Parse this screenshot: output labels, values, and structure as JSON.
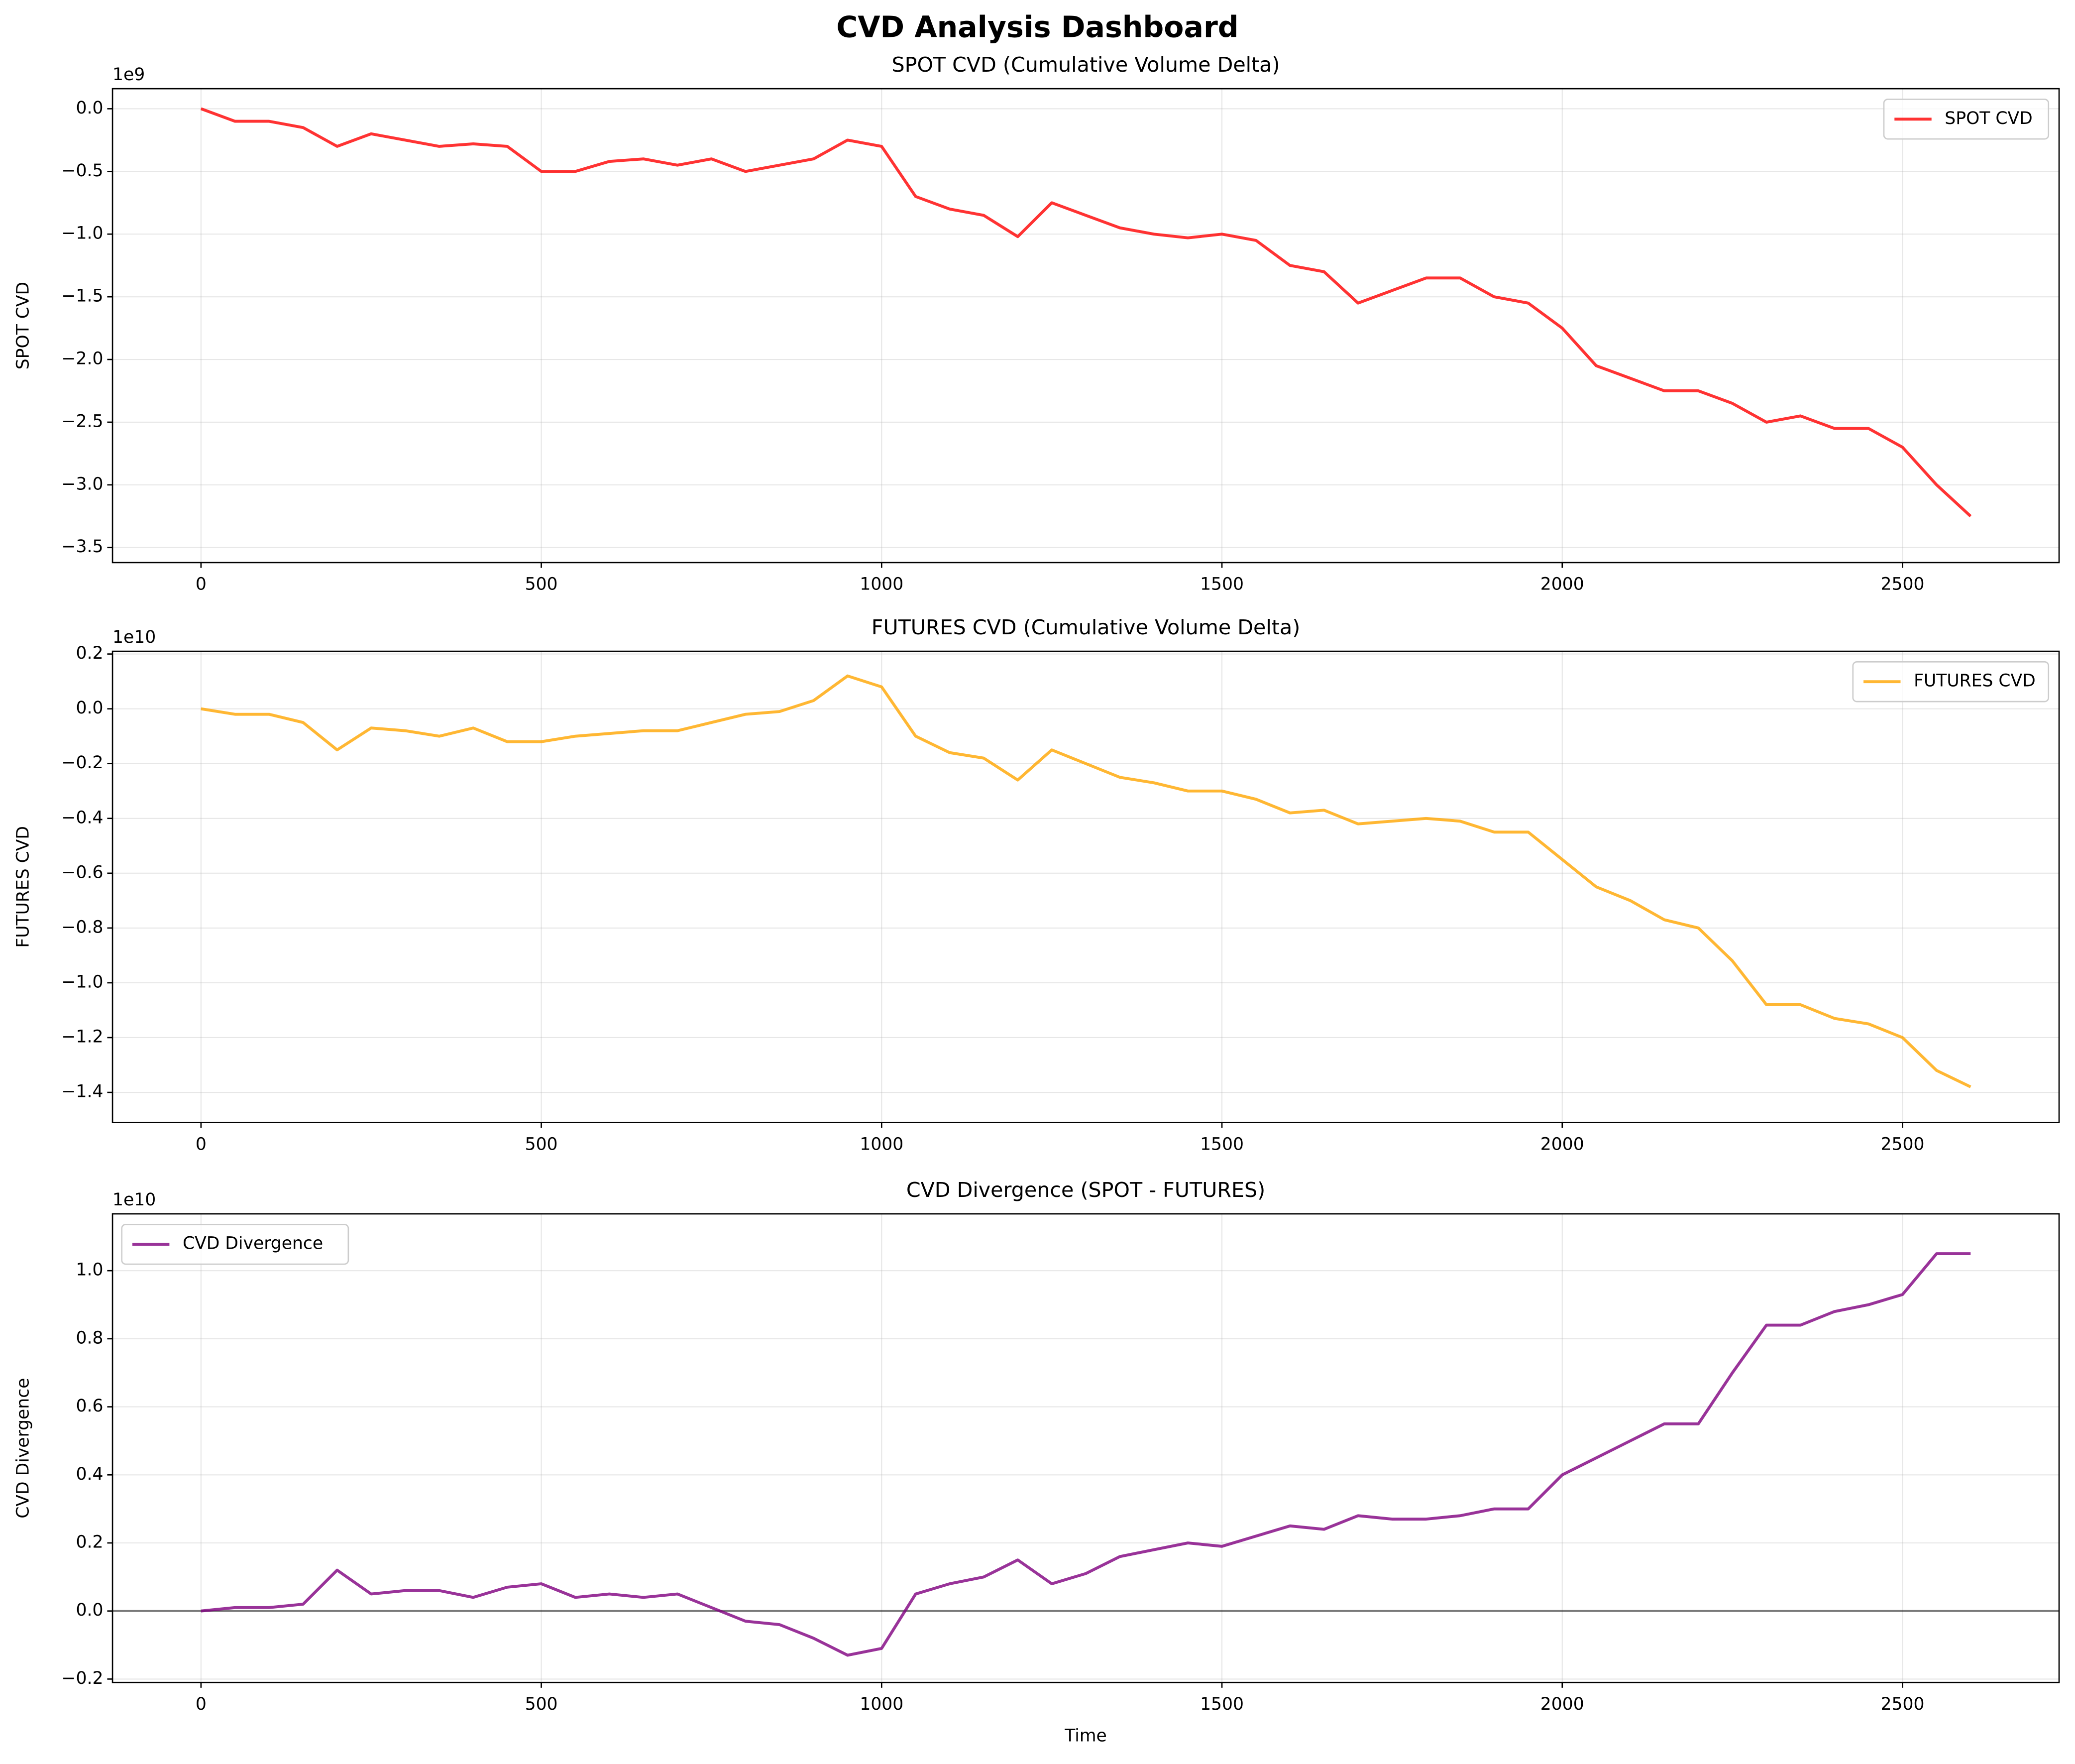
{
  "title": "CVD Analysis Dashboard",
  "chart_data": [
    {
      "type": "line",
      "title": "SPOT CVD (Cumulative Volume Delta)",
      "ylabel": "SPOT CVD",
      "offset_label": "1e9",
      "x": [
        0,
        50,
        100,
        150,
        200,
        250,
        300,
        350,
        400,
        450,
        500,
        550,
        600,
        650,
        700,
        750,
        800,
        850,
        900,
        950,
        1000,
        1050,
        1100,
        1150,
        1200,
        1250,
        1300,
        1350,
        1400,
        1450,
        1500,
        1550,
        1600,
        1650,
        1700,
        1750,
        1800,
        1850,
        1900,
        1950,
        2000,
        2050,
        2100,
        2150,
        2200,
        2250,
        2300,
        2350,
        2400,
        2450,
        2500,
        2550,
        2600
      ],
      "series": [
        {
          "name": "SPOT CVD",
          "color": "red",
          "values": [
            0,
            -0.1,
            -0.1,
            -0.15,
            -0.3,
            -0.2,
            -0.25,
            -0.3,
            -0.28,
            -0.3,
            -0.5,
            -0.5,
            -0.42,
            -0.4,
            -0.45,
            -0.4,
            -0.5,
            -0.45,
            -0.4,
            -0.25,
            -0.3,
            -0.7,
            -0.8,
            -0.85,
            -1.02,
            -0.75,
            -0.85,
            -0.95,
            -1.0,
            -1.03,
            -1.0,
            -1.05,
            -1.25,
            -1.3,
            -1.55,
            -1.45,
            -1.35,
            -1.35,
            -1.5,
            -1.55,
            -1.75,
            -2.05,
            -2.15,
            -2.25,
            -2.25,
            -2.35,
            -2.5,
            -2.45,
            -2.55,
            -2.55,
            -2.7,
            -3.0,
            -3.25
          ]
        }
      ],
      "xlim": [
        -130,
        2730
      ],
      "xticks": [
        0,
        500,
        1000,
        1500,
        2000,
        2500
      ],
      "ylim": [
        -3.62,
        0.16
      ],
      "yticks": [
        {
          "value": 0,
          "label": "0.0"
        },
        {
          "value": -0.5,
          "label": "−0.5"
        },
        {
          "value": -1,
          "label": "−1.0"
        },
        {
          "value": -1.5,
          "label": "−1.5"
        },
        {
          "value": -2,
          "label": "−2.0"
        },
        {
          "value": -2.5,
          "label": "−2.5"
        },
        {
          "value": -3,
          "label": "−3.0"
        },
        {
          "value": -3.5,
          "label": "−3.5"
        }
      ],
      "grid": true,
      "legend": "upper right"
    },
    {
      "type": "line",
      "title": "FUTURES CVD (Cumulative Volume Delta)",
      "ylabel": "FUTURES CVD",
      "offset_label": "1e10",
      "x": [
        0,
        50,
        100,
        150,
        200,
        250,
        300,
        350,
        400,
        450,
        500,
        550,
        600,
        650,
        700,
        750,
        800,
        850,
        900,
        950,
        1000,
        1050,
        1100,
        1150,
        1200,
        1250,
        1300,
        1350,
        1400,
        1450,
        1500,
        1550,
        1600,
        1650,
        1700,
        1750,
        1800,
        1850,
        1900,
        1950,
        2000,
        2050,
        2100,
        2150,
        2200,
        2250,
        2300,
        2350,
        2400,
        2450,
        2500,
        2550,
        2600
      ],
      "series": [
        {
          "name": "FUTURES CVD",
          "color": "orange",
          "values": [
            0,
            -0.02,
            -0.02,
            -0.05,
            -0.15,
            -0.07,
            -0.08,
            -0.1,
            -0.07,
            -0.12,
            -0.12,
            -0.1,
            -0.09,
            -0.08,
            -0.08,
            -0.05,
            -0.02,
            -0.01,
            0.03,
            0.12,
            0.08,
            -0.1,
            -0.16,
            -0.18,
            -0.26,
            -0.15,
            -0.2,
            -0.25,
            -0.27,
            -0.3,
            -0.3,
            -0.33,
            -0.38,
            -0.37,
            -0.42,
            -0.41,
            -0.4,
            -0.41,
            -0.45,
            -0.45,
            -0.55,
            -0.65,
            -0.7,
            -0.77,
            -0.8,
            -0.92,
            -1.08,
            -1.08,
            -1.13,
            -1.15,
            -1.2,
            -1.32,
            -1.38
          ]
        }
      ],
      "xlim": [
        -130,
        2730
      ],
      "xticks": [
        0,
        500,
        1000,
        1500,
        2000,
        2500
      ],
      "ylim": [
        -1.51,
        0.21
      ],
      "yticks": [
        {
          "value": 0.2,
          "label": "0.2"
        },
        {
          "value": 0,
          "label": "0.0"
        },
        {
          "value": -0.2,
          "label": "−0.2"
        },
        {
          "value": -0.4,
          "label": "−0.4"
        },
        {
          "value": -0.6,
          "label": "−0.6"
        },
        {
          "value": -0.8,
          "label": "−0.8"
        },
        {
          "value": -1,
          "label": "−1.0"
        },
        {
          "value": -1.2,
          "label": "−1.2"
        },
        {
          "value": -1.4,
          "label": "−1.4"
        }
      ],
      "grid": true,
      "legend": "upper right"
    },
    {
      "type": "line",
      "title": "CVD Divergence (SPOT - FUTURES)",
      "ylabel": "CVD Divergence",
      "xlabel": "Time",
      "offset_label": "1e10",
      "x": [
        0,
        50,
        100,
        150,
        200,
        250,
        300,
        350,
        400,
        450,
        500,
        550,
        600,
        650,
        700,
        750,
        800,
        850,
        900,
        950,
        1000,
        1050,
        1100,
        1150,
        1200,
        1250,
        1300,
        1350,
        1400,
        1450,
        1500,
        1550,
        1600,
        1650,
        1700,
        1750,
        1800,
        1850,
        1900,
        1950,
        2000,
        2050,
        2100,
        2150,
        2200,
        2250,
        2300,
        2350,
        2400,
        2450,
        2500,
        2550,
        2600
      ],
      "series": [
        {
          "name": "CVD Divergence",
          "color": "purple",
          "values": [
            0,
            0.01,
            0.01,
            0.02,
            0.12,
            0.05,
            0.06,
            0.06,
            0.04,
            0.07,
            0.08,
            0.04,
            0.05,
            0.04,
            0.05,
            0.01,
            -0.03,
            -0.04,
            -0.08,
            -0.13,
            -0.11,
            0.05,
            0.08,
            0.1,
            0.15,
            0.08,
            0.11,
            0.16,
            0.18,
            0.2,
            0.19,
            0.22,
            0.25,
            0.24,
            0.28,
            0.27,
            0.27,
            0.28,
            0.3,
            0.3,
            0.4,
            0.45,
            0.5,
            0.55,
            0.55,
            0.7,
            0.84,
            0.84,
            0.88,
            0.9,
            0.93,
            1.05,
            1.05
          ]
        }
      ],
      "hline": 0,
      "xlim": [
        -130,
        2730
      ],
      "xticks": [
        0,
        500,
        1000,
        1500,
        2000,
        2500
      ],
      "ylim": [
        -0.21,
        1.167
      ],
      "yticks": [
        {
          "value": -0.2,
          "label": "−0.2"
        },
        {
          "value": 0,
          "label": "0.0"
        },
        {
          "value": 0.2,
          "label": "0.2"
        },
        {
          "value": 0.4,
          "label": "0.4"
        },
        {
          "value": 0.6,
          "label": "0.6"
        },
        {
          "value": 0.8,
          "label": "0.8"
        },
        {
          "value": 1,
          "label": "1.0"
        }
      ],
      "grid": true,
      "legend": "upper left"
    }
  ]
}
